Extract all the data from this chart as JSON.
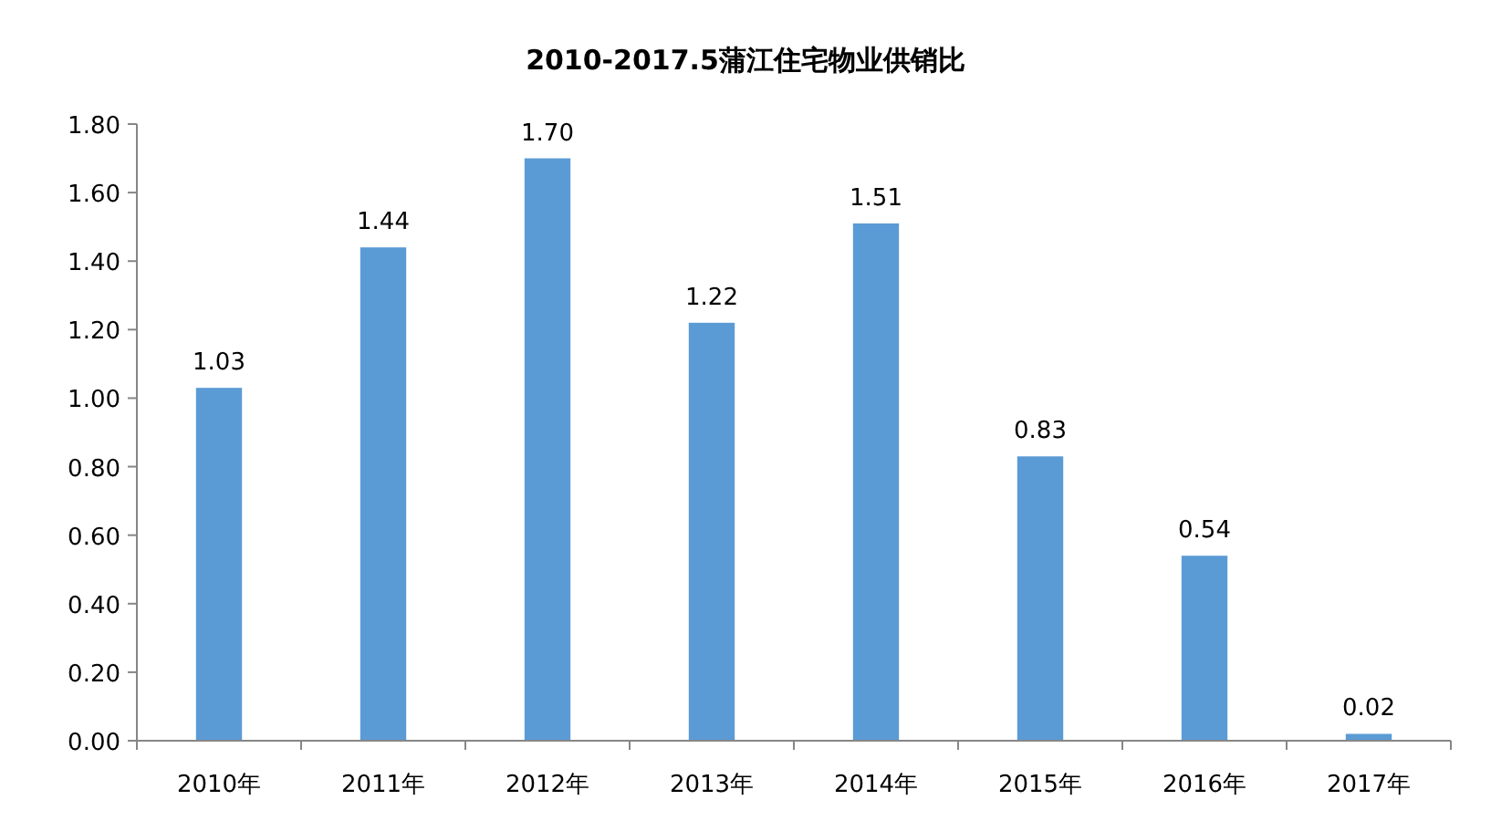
{
  "chart_data": {
    "type": "bar",
    "title": "2010-2017.5蒲江住宅物业供销比",
    "categories": [
      "2010年",
      "2011年",
      "2012年",
      "2013年",
      "2014年",
      "2015年",
      "2016年",
      "2017年"
    ],
    "values": [
      1.03,
      1.44,
      1.7,
      1.22,
      1.51,
      0.83,
      0.54,
      0.02
    ],
    "value_labels": [
      "1.03",
      "1.44",
      "1.70",
      "1.22",
      "1.51",
      "0.83",
      "0.54",
      "0.02"
    ],
    "color": "#5b9bd5",
    "ylim": [
      0,
      1.8
    ],
    "yticks": [
      {
        "value": 0,
        "label": "0.00"
      },
      {
        "value": 0.2,
        "label": "0.20"
      },
      {
        "value": 0.4,
        "label": "0.40"
      },
      {
        "value": 0.6,
        "label": "0.60"
      },
      {
        "value": 0.8,
        "label": "0.80"
      },
      {
        "value": 1.0,
        "label": "1.00"
      },
      {
        "value": 1.2,
        "label": "1.20"
      },
      {
        "value": 1.4,
        "label": "1.40"
      },
      {
        "value": 1.6,
        "label": "1.60"
      },
      {
        "value": 1.8,
        "label": "1.80"
      }
    ],
    "grid": false
  }
}
